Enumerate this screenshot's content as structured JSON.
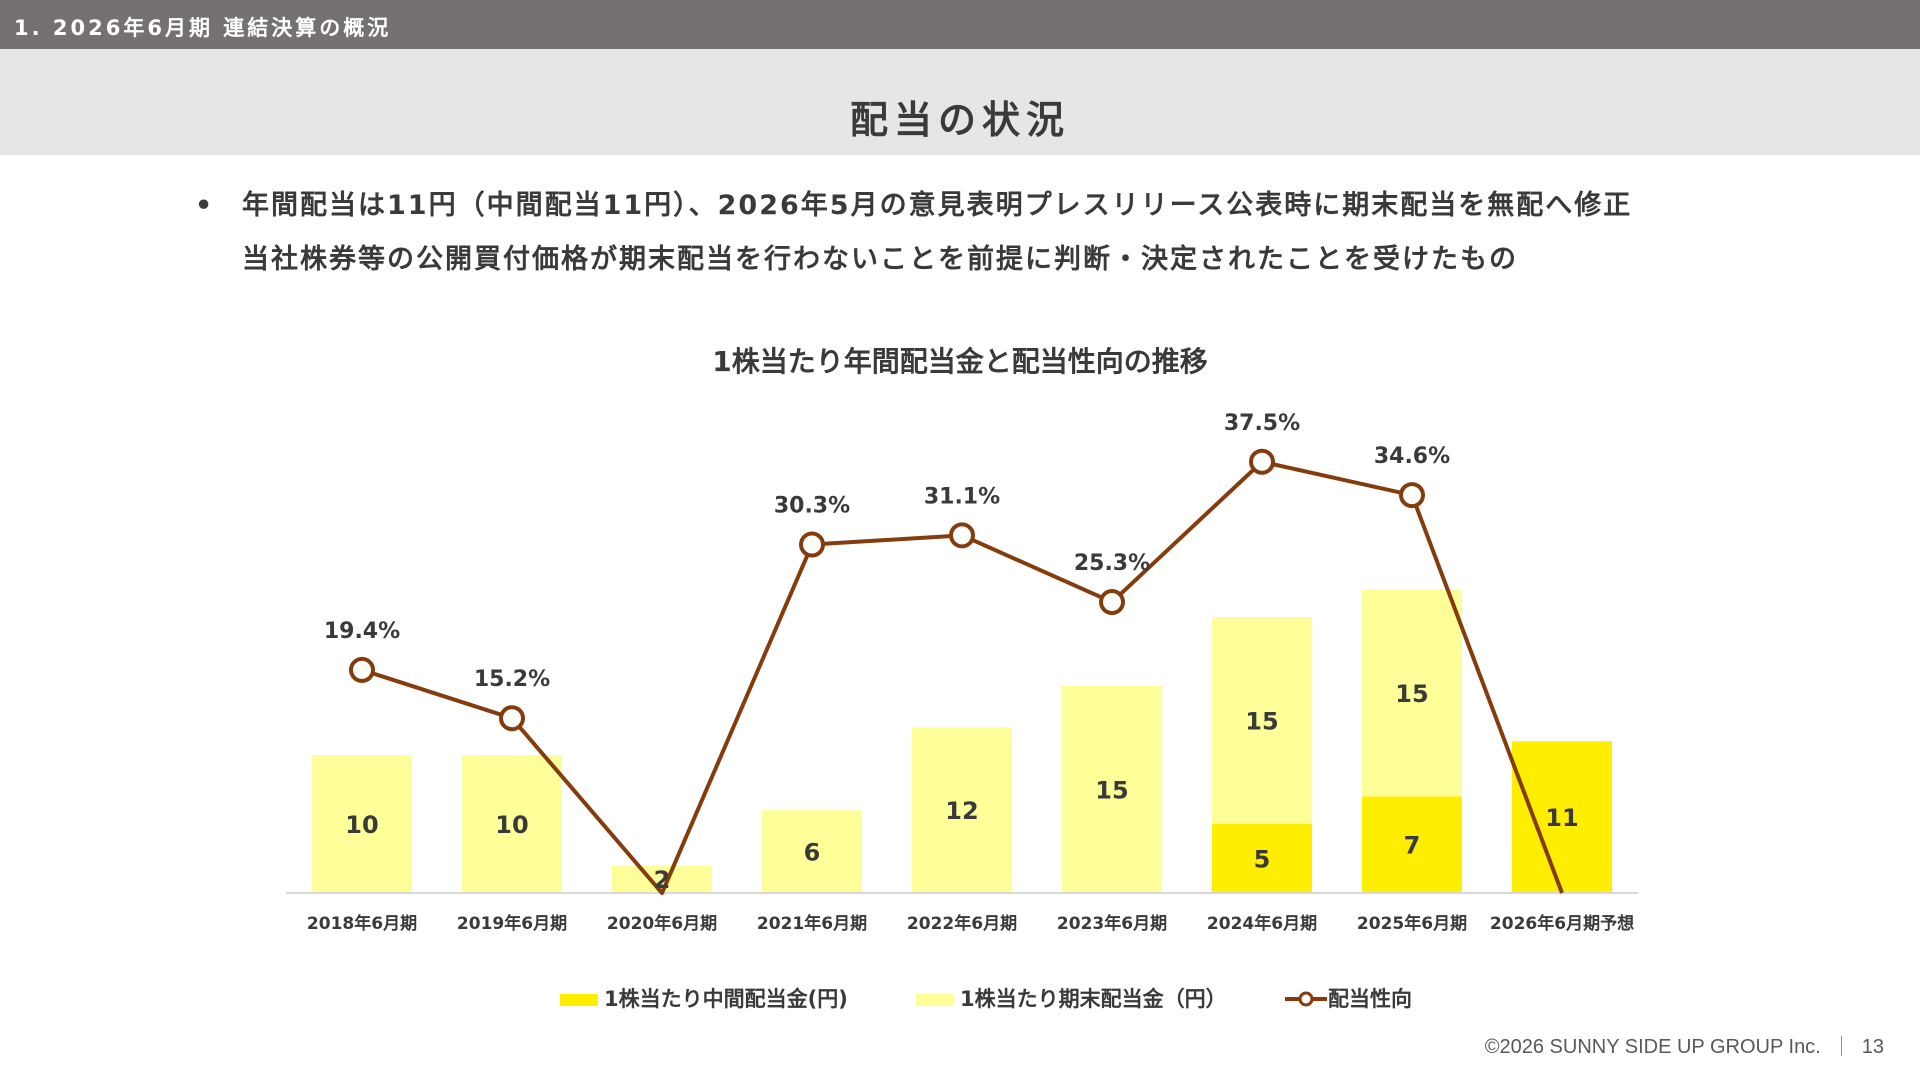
{
  "header": {
    "section": "1. 2026年6月期 連結決算の概況",
    "title": "配当の状況"
  },
  "bullets": {
    "marker": "•",
    "line1": "年間配当は11円（中間配当11円）、2026年5月の意見表明プレスリリース公表時に期末配当を無配へ修正",
    "line2": "当社株券等の公開買付価格が期末配当を行わないことを前提に判断・決定されたことを受けたもの"
  },
  "chart_data": {
    "type": "bar",
    "title": "1株当たり年間配当金と配当性向の推移",
    "categories": [
      "2018年6月期",
      "2019年6月期",
      "2020年6月期",
      "2021年6月期",
      "2022年6月期",
      "2023年6月期",
      "2024年6月期",
      "2025年6月期",
      "2026年6月期予想"
    ],
    "series": [
      {
        "name": "1株当たり中間配当金(円)",
        "type": "bar",
        "stack": "dividend",
        "color": "#ffee00",
        "values": [
          0,
          0,
          0,
          0,
          0,
          0,
          5,
          7,
          11
        ]
      },
      {
        "name": "1株当たり期末配当金（円）",
        "type": "bar",
        "stack": "dividend",
        "color": "#ffff99",
        "values": [
          10,
          10,
          2,
          6,
          12,
          15,
          15,
          15,
          0
        ]
      },
      {
        "name": "配当性向",
        "type": "line",
        "color": "#843c0c",
        "values": [
          19.4,
          15.2,
          0,
          30.3,
          31.1,
          25.3,
          37.5,
          34.6,
          0
        ],
        "labels": [
          "19.4%",
          "15.2%",
          "",
          "30.3%",
          "31.1%",
          "25.3%",
          "37.5%",
          "34.6%",
          ""
        ],
        "markers": [
          true,
          true,
          false,
          true,
          true,
          true,
          true,
          true,
          false
        ]
      }
    ],
    "bar_labels": {
      "interim": [
        "",
        "",
        "",
        "",
        "",
        "",
        "5",
        "7",
        "11"
      ],
      "year_end": [
        "10",
        "10",
        "2",
        "6",
        "12",
        "15",
        "15",
        "15",
        ""
      ]
    },
    "ylim_bar": [
      0,
      30
    ],
    "ylim_line": [
      0,
      50
    ],
    "grid": false,
    "legend_position": "bottom"
  },
  "footer": {
    "copyright": "©2026 SUNNY SIDE UP GROUP Inc.",
    "page": "13"
  }
}
